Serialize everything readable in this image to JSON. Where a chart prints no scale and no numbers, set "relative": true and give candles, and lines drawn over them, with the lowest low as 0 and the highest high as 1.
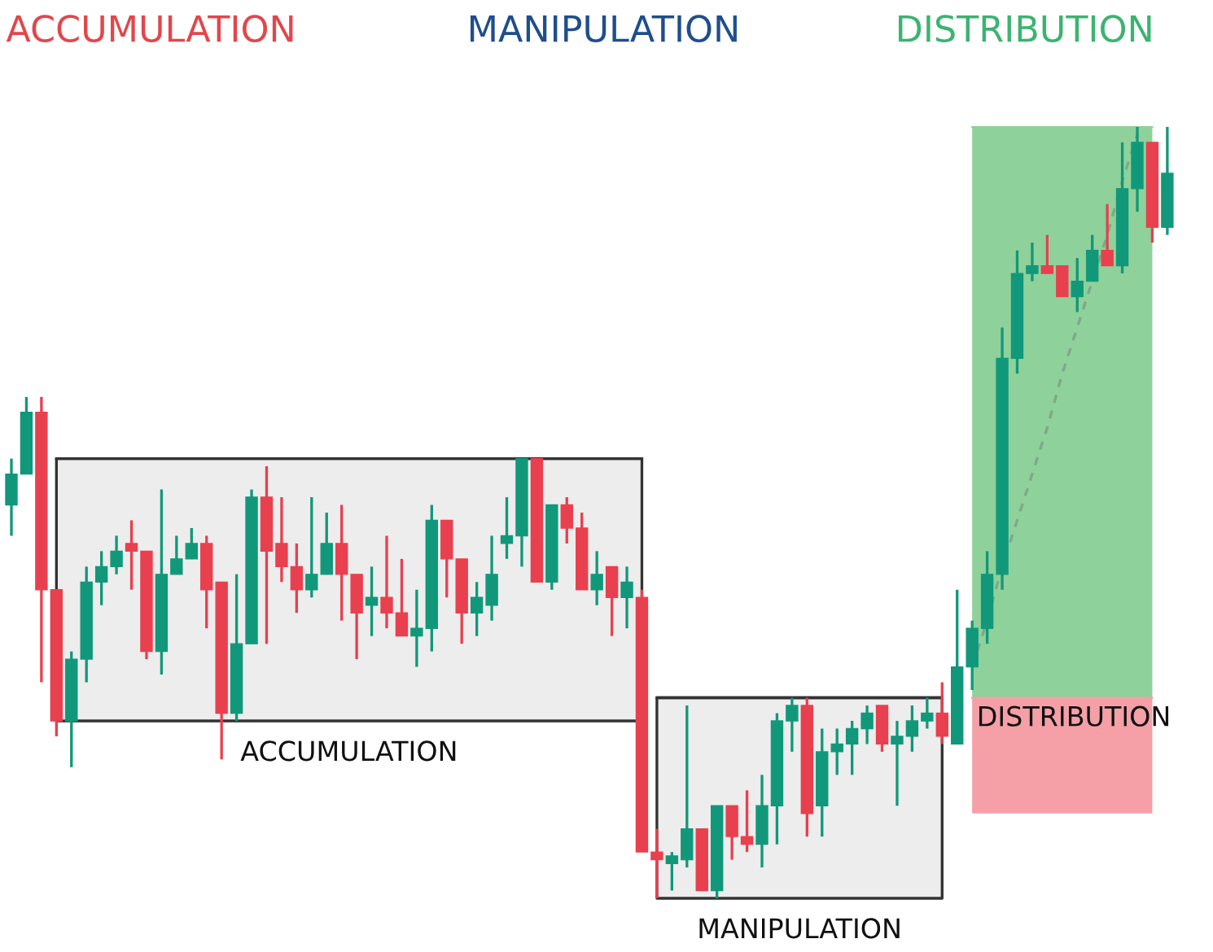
{
  "chart_data": {
    "type": "candlestick",
    "relative": true,
    "title": "ACCUMULATION MANIPULATION DISTRIBUTION",
    "categories": [
      null,
      null,
      null,
      null,
      null,
      null,
      null,
      null,
      null,
      null,
      null,
      null,
      null,
      null,
      null,
      null,
      null,
      null,
      null,
      null,
      null,
      null,
      null,
      null,
      null,
      null,
      null,
      null,
      null,
      null,
      null,
      null,
      null,
      null,
      null,
      null,
      null,
      null,
      null,
      null,
      null,
      null,
      null,
      null,
      null,
      null,
      null,
      null,
      null,
      null,
      null,
      null,
      null,
      null,
      null,
      null,
      null,
      null,
      null,
      null,
      null,
      null,
      null,
      null,
      null,
      null,
      null,
      null,
      null,
      null,
      null,
      null,
      null,
      null,
      null,
      null,
      null,
      null
    ],
    "ohlc": [
      [
        0.51,
        0.57,
        0.47,
        0.55
      ],
      [
        0.55,
        0.65,
        0.55,
        0.63
      ],
      [
        0.63,
        0.65,
        0.28,
        0.4
      ],
      [
        0.4,
        0.4,
        0.21,
        0.23
      ],
      [
        0.23,
        0.32,
        0.17,
        0.31
      ],
      [
        0.31,
        0.43,
        0.28,
        0.41
      ],
      [
        0.41,
        0.45,
        0.38,
        0.43
      ],
      [
        0.43,
        0.47,
        0.42,
        0.45
      ],
      [
        0.46,
        0.49,
        0.4,
        0.45
      ],
      [
        0.45,
        0.45,
        0.31,
        0.32
      ],
      [
        0.32,
        0.53,
        0.29,
        0.42
      ],
      [
        0.42,
        0.47,
        0.42,
        0.44
      ],
      [
        0.44,
        0.48,
        0.44,
        0.46
      ],
      [
        0.46,
        0.47,
        0.35,
        0.4
      ],
      [
        0.41,
        0.41,
        0.18,
        0.24
      ],
      [
        0.24,
        0.42,
        0.23,
        0.33
      ],
      [
        0.33,
        0.53,
        0.33,
        0.52
      ],
      [
        0.52,
        0.56,
        0.33,
        0.45
      ],
      [
        0.46,
        0.52,
        0.41,
        0.43
      ],
      [
        0.43,
        0.46,
        0.37,
        0.4
      ],
      [
        0.4,
        0.52,
        0.39,
        0.42
      ],
      [
        0.42,
        0.5,
        0.42,
        0.46
      ],
      [
        0.46,
        0.51,
        0.36,
        0.42
      ],
      [
        0.42,
        0.42,
        0.31,
        0.37
      ],
      [
        0.38,
        0.43,
        0.34,
        0.39
      ],
      [
        0.39,
        0.47,
        0.35,
        0.37
      ],
      [
        0.37,
        0.44,
        0.34,
        0.34
      ],
      [
        0.34,
        0.4,
        0.3,
        0.35
      ],
      [
        0.35,
        0.51,
        0.32,
        0.49
      ],
      [
        0.49,
        0.49,
        0.39,
        0.44
      ],
      [
        0.44,
        0.44,
        0.33,
        0.37
      ],
      [
        0.37,
        0.41,
        0.34,
        0.39
      ],
      [
        0.38,
        0.47,
        0.36,
        0.42
      ],
      [
        0.46,
        0.52,
        0.44,
        0.47
      ],
      [
        0.47,
        0.57,
        0.43,
        0.57
      ],
      [
        0.57,
        0.57,
        0.41,
        0.41
      ],
      [
        0.41,
        0.51,
        0.4,
        0.51
      ],
      [
        0.51,
        0.52,
        0.46,
        0.48
      ],
      [
        0.48,
        0.5,
        0.4,
        0.4
      ],
      [
        0.4,
        0.45,
        0.38,
        0.42
      ],
      [
        0.43,
        0.43,
        0.34,
        0.39
      ],
      [
        0.39,
        0.43,
        0.35,
        0.41
      ],
      [
        0.39,
        0.4,
        0.06,
        0.06
      ],
      [
        0.06,
        0.09,
        0.0,
        0.05
      ],
      [
        0.045,
        0.06,
        0.01,
        0.055
      ],
      [
        0.05,
        0.25,
        0.04,
        0.09
      ],
      [
        0.09,
        0.09,
        0.01,
        0.01
      ],
      [
        0.01,
        0.12,
        0.0,
        0.12
      ],
      [
        0.12,
        0.12,
        0.05,
        0.08
      ],
      [
        0.08,
        0.14,
        0.06,
        0.07
      ],
      [
        0.07,
        0.16,
        0.04,
        0.12
      ],
      [
        0.12,
        0.24,
        0.07,
        0.23
      ],
      [
        0.23,
        0.26,
        0.19,
        0.25
      ],
      [
        0.25,
        0.26,
        0.08,
        0.11
      ],
      [
        0.12,
        0.22,
        0.08,
        0.19
      ],
      [
        0.19,
        0.22,
        0.16,
        0.2
      ],
      [
        0.2,
        0.23,
        0.16,
        0.22
      ],
      [
        0.22,
        0.25,
        0.2,
        0.24
      ],
      [
        0.25,
        0.25,
        0.19,
        0.2
      ],
      [
        0.2,
        0.23,
        0.12,
        0.21
      ],
      [
        0.21,
        0.25,
        0.19,
        0.23
      ],
      [
        0.23,
        0.26,
        0.22,
        0.24
      ],
      [
        0.24,
        0.28,
        0.2,
        0.21
      ],
      [
        0.2,
        0.4,
        0.2,
        0.3
      ],
      [
        0.3,
        0.36,
        0.27,
        0.35
      ],
      [
        0.35,
        0.45,
        0.33,
        0.42
      ],
      [
        0.42,
        0.74,
        0.4,
        0.7
      ],
      [
        0.7,
        0.84,
        0.68,
        0.81
      ],
      [
        0.81,
        0.85,
        0.8,
        0.82
      ],
      [
        0.82,
        0.86,
        0.81,
        0.81
      ],
      [
        0.82,
        0.82,
        0.78,
        0.78
      ],
      [
        0.78,
        0.83,
        0.76,
        0.8
      ],
      [
        0.8,
        0.86,
        0.8,
        0.84
      ],
      [
        0.84,
        0.9,
        0.82,
        0.82
      ],
      [
        0.82,
        0.98,
        0.81,
        0.92
      ],
      [
        0.92,
        1.0,
        0.89,
        0.98
      ],
      [
        0.98,
        0.98,
        0.85,
        0.87
      ],
      [
        0.87,
        1.0,
        0.86,
        0.94
      ]
    ],
    "colors": [
      "#11987a",
      "#11987a",
      "#e8404f",
      "#e8404f",
      "#11987a",
      "#11987a",
      "#11987a",
      "#11987a",
      "#e8404f",
      "#e8404f",
      "#11987a",
      "#11987a",
      "#11987a",
      "#e8404f",
      "#e8404f",
      "#11987a",
      "#11987a",
      "#e8404f",
      "#e8404f",
      "#e8404f",
      "#11987a",
      "#11987a",
      "#e8404f",
      "#e8404f",
      "#11987a",
      "#e8404f",
      "#e8404f",
      "#11987a",
      "#11987a",
      "#e8404f",
      "#e8404f",
      "#11987a",
      "#11987a",
      "#11987a",
      "#11987a",
      "#e8404f",
      "#11987a",
      "#e8404f",
      "#e8404f",
      "#11987a",
      "#e8404f",
      "#11987a",
      "#e8404f",
      "#e8404f",
      "#11987a",
      "#11987a",
      "#e8404f",
      "#11987a",
      "#e8404f",
      "#e8404f",
      "#11987a",
      "#11987a",
      "#11987a",
      "#e8404f",
      "#11987a",
      "#11987a",
      "#11987a",
      "#11987a",
      "#e8404f",
      "#11987a",
      "#11987a",
      "#11987a",
      "#e8404f",
      "#11987a",
      "#11987a",
      "#11987a",
      "#11987a",
      "#11987a",
      "#11987a",
      "#e8404f",
      "#e8404f",
      "#11987a",
      "#11987a",
      "#e8404f",
      "#11987a",
      "#11987a",
      "#e8404f",
      "#11987a"
    ],
    "series": [
      {
        "type": "line",
        "color": "#333333",
        "line_style": "solid",
        "upper": [
          null,
          null,
          null,
          0.57,
          0.57,
          0.57,
          0.57,
          0.57,
          0.57,
          0.57,
          0.57,
          0.57,
          0.57,
          0.57,
          0.57,
          0.57,
          0.57,
          0.57,
          0.57,
          0.57,
          0.57,
          0.57,
          0.57,
          0.57,
          0.57,
          0.57,
          0.57,
          0.57,
          0.57,
          0.57,
          0.57,
          0.57,
          0.57,
          0.57,
          0.57,
          0.57,
          0.57,
          0.57,
          0.57,
          0.57,
          0.57,
          0.57,
          0.57,
          null,
          null,
          null,
          null,
          null,
          null,
          null,
          null,
          null,
          null,
          null,
          null,
          null,
          null,
          null,
          null,
          null,
          null,
          null,
          null,
          null,
          null,
          null,
          null,
          null,
          null,
          null,
          null,
          null,
          null,
          null,
          null,
          null,
          null,
          null
        ],
        "values": [
          null,
          null,
          null,
          0.57,
          0.57,
          0.57,
          0.57,
          0.57,
          0.57,
          0.57,
          0.57,
          0.57,
          0.57,
          0.57,
          0.57,
          0.57,
          0.57,
          0.57,
          0.57,
          0.57,
          0.57,
          0.57,
          0.57,
          0.57,
          0.57,
          0.57,
          0.57,
          0.57,
          0.57,
          0.57,
          0.57,
          0.57,
          0.57,
          0.57,
          0.57,
          0.57,
          0.57,
          0.57,
          0.57,
          0.57,
          0.57,
          0.57,
          0.57,
          null,
          null,
          null,
          null,
          null,
          null,
          null,
          null,
          null,
          null,
          null,
          null,
          null,
          null,
          null,
          null,
          null,
          null,
          null,
          null,
          null,
          null,
          null,
          null,
          null,
          null,
          null,
          null,
          null,
          null,
          null,
          null,
          null,
          null,
          null
        ],
        "lower": [
          null,
          null,
          null,
          0.23,
          0.23,
          0.23,
          0.23,
          0.23,
          0.23,
          0.23,
          0.23,
          0.23,
          0.23,
          0.23,
          0.23,
          0.23,
          0.23,
          0.23,
          0.23,
          0.23,
          0.23,
          0.23,
          0.23,
          0.23,
          0.23,
          0.23,
          0.23,
          0.23,
          0.23,
          0.23,
          0.23,
          0.23,
          0.23,
          0.23,
          0.23,
          0.23,
          0.23,
          0.23,
          0.23,
          0.23,
          0.23,
          0.23,
          0.23,
          null,
          null,
          null,
          null,
          null,
          null,
          null,
          null,
          null,
          null,
          null,
          null,
          null,
          null,
          null,
          null,
          null,
          null,
          null,
          null,
          null,
          null,
          null,
          null,
          null,
          null,
          null,
          null,
          null,
          null,
          null,
          null,
          null,
          null,
          null
        ]
      },
      {
        "type": "line",
        "color": "#333333",
        "line_style": "solid",
        "upper": [
          null,
          null,
          null,
          null,
          null,
          null,
          null,
          null,
          null,
          null,
          null,
          null,
          null,
          null,
          null,
          null,
          null,
          null,
          null,
          null,
          null,
          null,
          null,
          null,
          null,
          null,
          null,
          null,
          null,
          null,
          null,
          null,
          null,
          null,
          null,
          null,
          null,
          null,
          null,
          null,
          null,
          null,
          null,
          0.26,
          0.26,
          0.26,
          0.26,
          0.26,
          0.26,
          0.26,
          0.26,
          0.26,
          0.26,
          0.26,
          0.26,
          0.26,
          0.26,
          0.26,
          0.26,
          0.26,
          0.26,
          0.26,
          0.26,
          null,
          null,
          null,
          null,
          null,
          null,
          null,
          null,
          null,
          null,
          null,
          null,
          null,
          null,
          null
        ],
        "values": [
          null,
          null,
          null,
          null,
          null,
          null,
          null,
          null,
          null,
          null,
          null,
          null,
          null,
          null,
          null,
          null,
          null,
          null,
          null,
          null,
          null,
          null,
          null,
          null,
          null,
          null,
          null,
          null,
          null,
          null,
          null,
          null,
          null,
          null,
          null,
          null,
          null,
          null,
          null,
          null,
          null,
          null,
          null,
          0.26,
          0.26,
          0.26,
          0.26,
          0.26,
          0.26,
          0.26,
          0.26,
          0.26,
          0.26,
          0.26,
          0.26,
          0.26,
          0.26,
          0.26,
          0.26,
          0.26,
          0.26,
          0.26,
          0.26,
          null,
          null,
          null,
          null,
          null,
          null,
          null,
          null,
          null,
          null,
          null,
          null,
          null,
          null,
          null
        ],
        "lower": [
          null,
          null,
          null,
          null,
          null,
          null,
          null,
          null,
          null,
          null,
          null,
          null,
          null,
          null,
          null,
          null,
          null,
          null,
          null,
          null,
          null,
          null,
          null,
          null,
          null,
          null,
          null,
          null,
          null,
          null,
          null,
          null,
          null,
          null,
          null,
          null,
          null,
          null,
          null,
          null,
          null,
          null,
          null,
          0.0,
          0.0,
          0.0,
          0.0,
          0.0,
          0.0,
          0.0,
          0.0,
          0.0,
          0.0,
          0.0,
          0.0,
          0.0,
          0.0,
          0.0,
          0.0,
          0.0,
          0.0,
          0.0,
          0.0,
          null,
          null,
          null,
          null,
          null,
          null,
          null,
          null,
          null,
          null,
          null,
          null,
          null,
          null,
          null
        ]
      },
      {
        "type": "line",
        "color": "#8fd19a",
        "upper": [
          null,
          null,
          null,
          null,
          null,
          null,
          null,
          null,
          null,
          null,
          null,
          null,
          null,
          null,
          null,
          null,
          null,
          null,
          null,
          null,
          null,
          null,
          null,
          null,
          null,
          null,
          null,
          null,
          null,
          null,
          null,
          null,
          null,
          null,
          null,
          null,
          null,
          null,
          null,
          null,
          null,
          null,
          null,
          null,
          null,
          null,
          null,
          null,
          null,
          null,
          null,
          null,
          null,
          null,
          null,
          null,
          null,
          null,
          null,
          null,
          null,
          null,
          null,
          null,
          1.0,
          1.0,
          1.0,
          1.0,
          1.0,
          1.0,
          1.0,
          1.0,
          1.0,
          1.0,
          1.0,
          1.0,
          1.0,
          null
        ],
        "values": [
          null,
          null,
          null,
          null,
          null,
          null,
          null,
          null,
          null,
          null,
          null,
          null,
          null,
          null,
          null,
          null,
          null,
          null,
          null,
          null,
          null,
          null,
          null,
          null,
          null,
          null,
          null,
          null,
          null,
          null,
          null,
          null,
          null,
          null,
          null,
          null,
          null,
          null,
          null,
          null,
          null,
          null,
          null,
          null,
          null,
          null,
          null,
          null,
          null,
          null,
          null,
          null,
          null,
          null,
          null,
          null,
          null,
          null,
          null,
          null,
          null,
          null,
          null,
          null,
          1.0,
          1.0,
          1.0,
          1.0,
          1.0,
          1.0,
          1.0,
          1.0,
          1.0,
          1.0,
          1.0,
          1.0,
          1.0,
          null
        ],
        "lower": [
          null,
          null,
          null,
          null,
          null,
          null,
          null,
          null,
          null,
          null,
          null,
          null,
          null,
          null,
          null,
          null,
          null,
          null,
          null,
          null,
          null,
          null,
          null,
          null,
          null,
          null,
          null,
          null,
          null,
          null,
          null,
          null,
          null,
          null,
          null,
          null,
          null,
          null,
          null,
          null,
          null,
          null,
          null,
          null,
          null,
          null,
          null,
          null,
          null,
          null,
          null,
          null,
          null,
          null,
          null,
          null,
          null,
          null,
          null,
          null,
          null,
          null,
          null,
          null,
          0.26,
          0.26,
          0.26,
          0.26,
          0.26,
          0.26,
          0.26,
          0.26,
          0.26,
          0.26,
          0.26,
          0.26,
          0.26,
          null
        ]
      },
      {
        "type": "line",
        "color": "#f4a0a6",
        "upper": [
          null,
          null,
          null,
          null,
          null,
          null,
          null,
          null,
          null,
          null,
          null,
          null,
          null,
          null,
          null,
          null,
          null,
          null,
          null,
          null,
          null,
          null,
          null,
          null,
          null,
          null,
          null,
          null,
          null,
          null,
          null,
          null,
          null,
          null,
          null,
          null,
          null,
          null,
          null,
          null,
          null,
          null,
          null,
          null,
          null,
          null,
          null,
          null,
          null,
          null,
          null,
          null,
          null,
          null,
          null,
          null,
          null,
          null,
          null,
          null,
          null,
          null,
          null,
          null,
          0.26,
          0.26,
          0.26,
          0.26,
          0.26,
          0.26,
          0.26,
          0.26,
          0.26,
          0.26,
          0.26,
          0.26,
          0.26,
          null
        ],
        "values": [
          null,
          null,
          null,
          null,
          null,
          null,
          null,
          null,
          null,
          null,
          null,
          null,
          null,
          null,
          null,
          null,
          null,
          null,
          null,
          null,
          null,
          null,
          null,
          null,
          null,
          null,
          null,
          null,
          null,
          null,
          null,
          null,
          null,
          null,
          null,
          null,
          null,
          null,
          null,
          null,
          null,
          null,
          null,
          null,
          null,
          null,
          null,
          null,
          null,
          null,
          null,
          null,
          null,
          null,
          null,
          null,
          null,
          null,
          null,
          null,
          null,
          null,
          null,
          null,
          0.26,
          0.26,
          0.26,
          0.26,
          0.26,
          0.26,
          0.26,
          0.26,
          0.26,
          0.26,
          0.26,
          0.26,
          0.26,
          null
        ],
        "lower": [
          null,
          null,
          null,
          null,
          null,
          null,
          null,
          null,
          null,
          null,
          null,
          null,
          null,
          null,
          null,
          null,
          null,
          null,
          null,
          null,
          null,
          null,
          null,
          null,
          null,
          null,
          null,
          null,
          null,
          null,
          null,
          null,
          null,
          null,
          null,
          null,
          null,
          null,
          null,
          null,
          null,
          null,
          null,
          null,
          null,
          null,
          null,
          null,
          null,
          null,
          null,
          null,
          null,
          null,
          null,
          null,
          null,
          null,
          null,
          null,
          null,
          null,
          null,
          null,
          0.11,
          0.11,
          0.11,
          0.11,
          0.11,
          0.11,
          0.11,
          0.11,
          0.11,
          0.11,
          0.11,
          0.11,
          0.11,
          null
        ]
      },
      {
        "type": "line",
        "color": "#7fa88a",
        "line_style": "dashed",
        "values": [
          null,
          null,
          null,
          null,
          null,
          null,
          null,
          null,
          null,
          null,
          null,
          null,
          null,
          null,
          null,
          null,
          null,
          null,
          null,
          null,
          null,
          null,
          null,
          null,
          null,
          null,
          null,
          null,
          null,
          null,
          null,
          null,
          null,
          null,
          null,
          null,
          null,
          null,
          null,
          null,
          null,
          null,
          null,
          null,
          null,
          null,
          null,
          null,
          null,
          null,
          null,
          null,
          null,
          null,
          null,
          null,
          null,
          null,
          null,
          null,
          null,
          null,
          null,
          null,
          0.3,
          0.36,
          0.43,
          0.49,
          0.55,
          0.61,
          0.68,
          0.74,
          0.8,
          0.86,
          0.93,
          0.99,
          null,
          null
        ]
      }
    ],
    "annotations": [
      "ACCUMULATION",
      "MANIPULATION",
      "DISTRIBUTION"
    ]
  }
}
